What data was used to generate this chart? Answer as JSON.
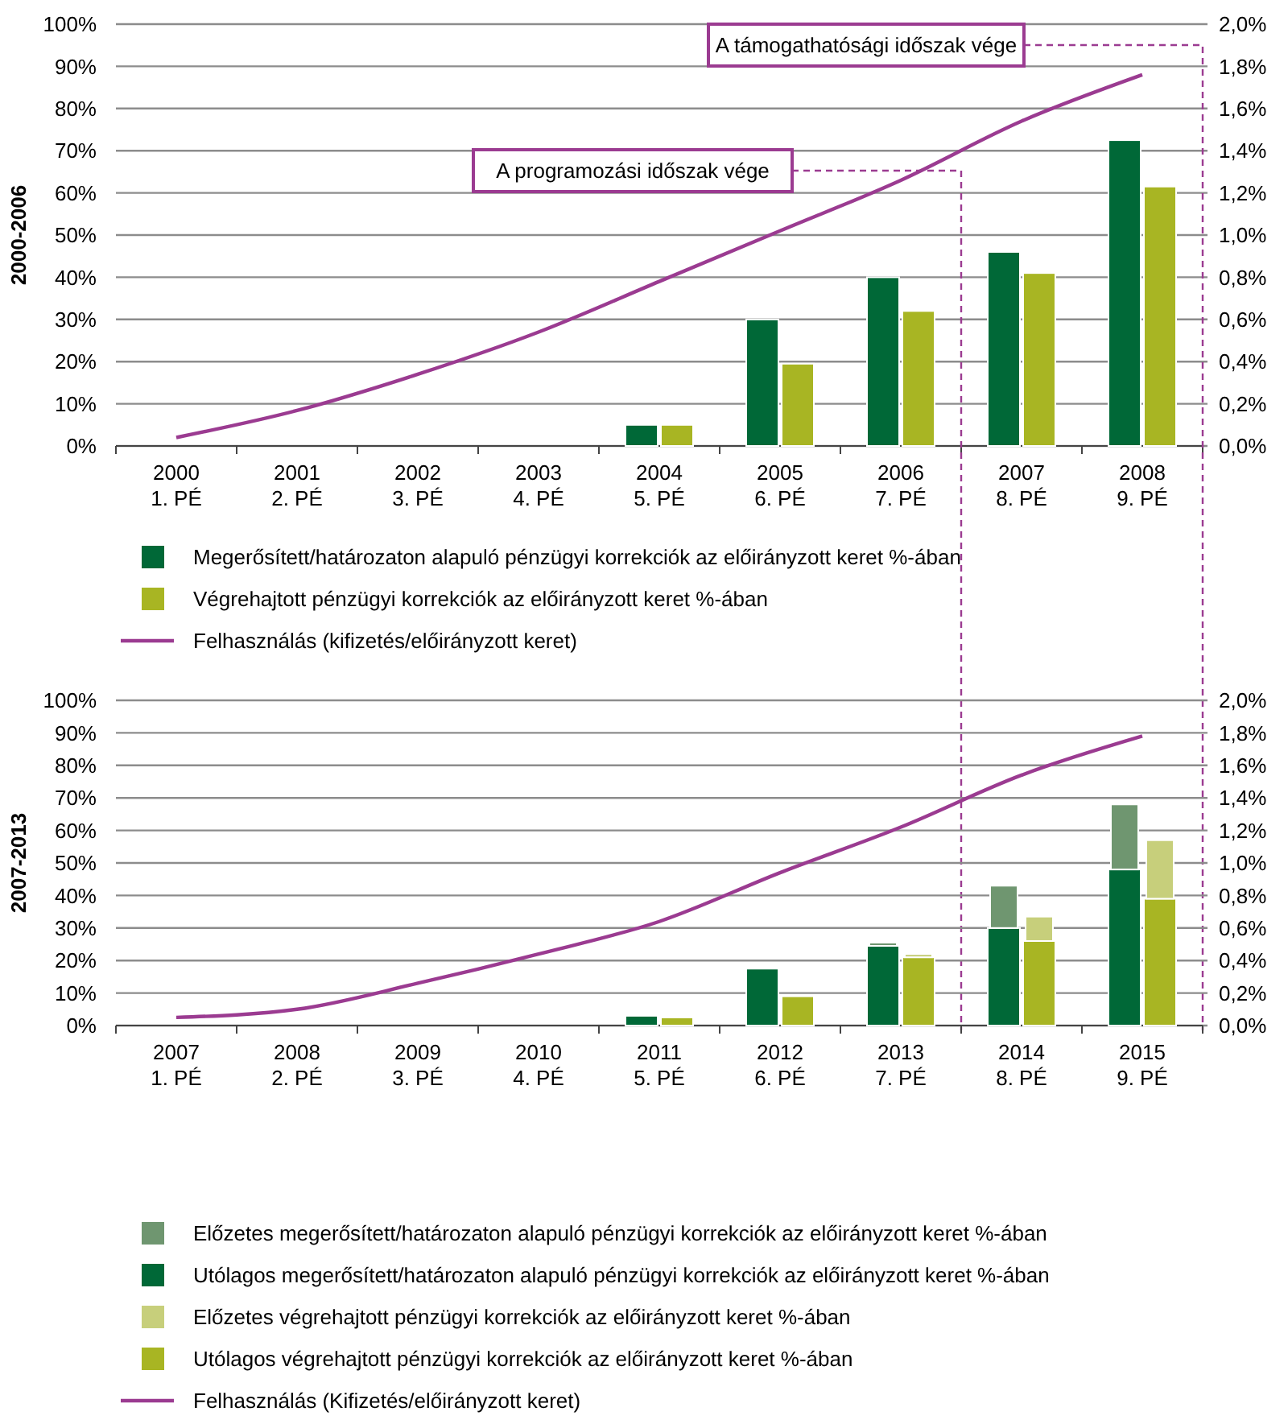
{
  "chart_data": [
    {
      "type": "bar",
      "ylabel": "2000-2006",
      "categories": [
        "2000\n1. PÉ",
        "2001\n2. PÉ",
        "2002\n3. PÉ",
        "2003\n4. PÉ",
        "2004\n5. PÉ",
        "2005\n6. PÉ",
        "2006\n7. PÉ",
        "2007\n8. PÉ",
        "2008\n9. PÉ"
      ],
      "series": [
        {
          "name": "Megerősített/határozaton alapuló pénzügyi korrekciók az előirányzott keret %-ában",
          "color": "#006837",
          "axis": "y2",
          "values": [
            null,
            null,
            null,
            null,
            0.1,
            0.6,
            0.8,
            0.92,
            1.45
          ]
        },
        {
          "name": "Végrehajtott pénzügyi korrekciók az előirányzott keret %-ában",
          "color": "#a8b523",
          "axis": "y2",
          "values": [
            null,
            null,
            null,
            null,
            0.1,
            0.39,
            0.64,
            0.82,
            1.23
          ]
        },
        {
          "name": "Felhasználás (kifizetés/előirányzott keret)",
          "type": "line",
          "color": "#9b3b91",
          "axis": "y",
          "values": [
            2,
            8.4,
            17,
            27,
            39,
            51,
            63,
            77,
            88
          ]
        }
      ],
      "ylim": [
        0,
        100
      ],
      "yticks": [
        {
          "value": 0,
          "label": "0%"
        },
        {
          "value": 10,
          "label": "10%"
        },
        {
          "value": 20,
          "label": "20%"
        },
        {
          "value": 30,
          "label": "30%"
        },
        {
          "value": 40,
          "label": "40%"
        },
        {
          "value": 50,
          "label": "50%"
        },
        {
          "value": 60,
          "label": "60%"
        },
        {
          "value": 70,
          "label": "70%"
        },
        {
          "value": 80,
          "label": "80%"
        },
        {
          "value": 90,
          "label": "90%"
        },
        {
          "value": 100,
          "label": "100%"
        }
      ],
      "y2lim": [
        0,
        2
      ],
      "y2ticks": [
        {
          "value": 0,
          "label": "0,0%"
        },
        {
          "value": 0.2,
          "label": "0,2%"
        },
        {
          "value": 0.4,
          "label": "0,4%"
        },
        {
          "value": 0.6,
          "label": "0,6%"
        },
        {
          "value": 0.8,
          "label": "0,8%"
        },
        {
          "value": 1,
          "label": "1,0%"
        },
        {
          "value": 1.2,
          "label": "1,2%"
        },
        {
          "value": 1.4,
          "label": "1,4%"
        },
        {
          "value": 1.6,
          "label": "1,6%"
        },
        {
          "value": 1.8,
          "label": "1,8%"
        },
        {
          "value": 2,
          "label": "2,0%"
        }
      ],
      "grid": "y",
      "legend": "bottom",
      "annotations": [
        "A programozási időszak vége",
        "A támogathatósági időszak vége"
      ]
    },
    {
      "type": "bar",
      "ylabel": "2007-2013",
      "categories": [
        "2007\n1. PÉ",
        "2008\n2. PÉ",
        "2009\n3. PÉ",
        "2010\n4. PÉ",
        "2011\n5. PÉ",
        "2012\n6. PÉ",
        "2013\n7. PÉ",
        "2014\n8. PÉ",
        "2015\n9. PÉ"
      ],
      "series": [
        {
          "name": "Utólagos megerősített/határozaton alapuló pénzügyi korrekciók az előirányzott keret %-ában",
          "color": "#006837",
          "axis": "y2",
          "values": [
            null,
            null,
            null,
            null,
            0.06,
            0.35,
            0.49,
            0.6,
            0.96
          ]
        },
        {
          "name": "Előzetes megerősített/határozaton alapuló pénzügyi korrekciók az előirányzott keret %-ában",
          "color": "#6f9670",
          "axis": "y2",
          "base": [
            null,
            null,
            null,
            null,
            null,
            null,
            0.49,
            0.6,
            0.96
          ],
          "values": [
            null,
            null,
            null,
            null,
            null,
            null,
            0.02,
            0.26,
            0.4
          ]
        },
        {
          "name": "Utólagos végrehajtott pénzügyi korrekciók az előirányzott keret %-ában",
          "color": "#a8b523",
          "axis": "y2",
          "values": [
            null,
            null,
            null,
            null,
            0.05,
            0.18,
            0.42,
            0.52,
            0.78
          ]
        },
        {
          "name": "Előzetes végrehajtott pénzügyi korrekciók az előirányzott keret %-ában",
          "color": "#c7cf7b",
          "axis": "y2",
          "base": [
            null,
            null,
            null,
            null,
            null,
            null,
            0.42,
            0.52,
            0.78
          ],
          "values": [
            null,
            null,
            null,
            null,
            null,
            null,
            0.02,
            0.15,
            0.36
          ]
        },
        {
          "name": "Felhasználás (Kifizetés/előirányzott keret)",
          "type": "line",
          "color": "#9b3b91",
          "axis": "y",
          "values": [
            2.5,
            5,
            13,
            22,
            32,
            47,
            61,
            77,
            89
          ]
        }
      ],
      "ylim": [
        0,
        100
      ],
      "yticks": [
        {
          "value": 0,
          "label": "0%"
        },
        {
          "value": 10,
          "label": "10%"
        },
        {
          "value": 20,
          "label": "20%"
        },
        {
          "value": 30,
          "label": "30%"
        },
        {
          "value": 40,
          "label": "40%"
        },
        {
          "value": 50,
          "label": "50%"
        },
        {
          "value": 60,
          "label": "60%"
        },
        {
          "value": 70,
          "label": "70%"
        },
        {
          "value": 80,
          "label": "80%"
        },
        {
          "value": 90,
          "label": "90%"
        },
        {
          "value": 100,
          "label": "100%"
        }
      ],
      "y2lim": [
        0,
        2
      ],
      "y2ticks": [
        {
          "value": 0,
          "label": "0,0%"
        },
        {
          "value": 0.2,
          "label": "0,2%"
        },
        {
          "value": 0.4,
          "label": "0,4%"
        },
        {
          "value": 0.6,
          "label": "0,6%"
        },
        {
          "value": 0.8,
          "label": "0,8%"
        },
        {
          "value": 1,
          "label": "1,0%"
        },
        {
          "value": 1.2,
          "label": "1,2%"
        },
        {
          "value": 1.4,
          "label": "1,4%"
        },
        {
          "value": 1.6,
          "label": "1,6%"
        },
        {
          "value": 1.8,
          "label": "1,8%"
        },
        {
          "value": 2,
          "label": "2,0%"
        }
      ],
      "grid": "y",
      "legend": "bottom"
    }
  ]
}
